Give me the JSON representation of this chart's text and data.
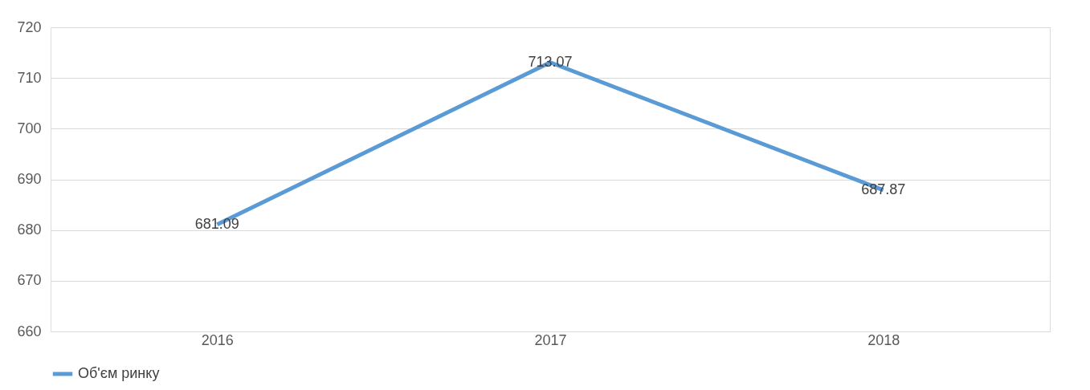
{
  "chart_data": {
    "type": "line",
    "categories": [
      "2016",
      "2017",
      "2018"
    ],
    "series": [
      {
        "name": "Об'єм ринку",
        "color": "#5b9bd5",
        "values": [
          681.09,
          713.07,
          687.87
        ]
      }
    ],
    "ylim": [
      660,
      720
    ],
    "yticks": [
      660,
      670,
      680,
      690,
      700,
      710,
      720
    ],
    "grid": "y",
    "legend": "bottom",
    "data_labels": true
  }
}
